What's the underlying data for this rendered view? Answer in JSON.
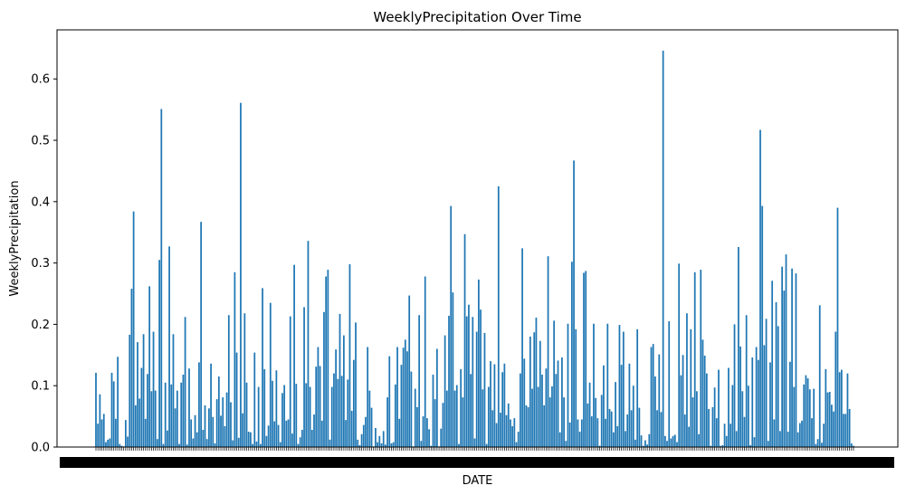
{
  "chart_data": {
    "type": "bar",
    "title": "WeeklyPrecipitation Over Time",
    "xlabel": "DATE",
    "ylabel": "WeeklyPrecipitation",
    "ylim": [
      0,
      0.68
    ],
    "yticks": [
      "0.0",
      "0.1",
      "0.2",
      "0.3",
      "0.4",
      "0.5",
      "0.6"
    ],
    "ytick_values": [
      0.0,
      0.1,
      0.2,
      0.3,
      0.4,
      0.5,
      0.6
    ],
    "xtick_edge_labels": {
      "left": "2",
      "right": "25"
    },
    "legend": "none",
    "grid": false,
    "bar_color": "#1f77b4",
    "values": [
      0.121,
      0.038,
      0.086,
      0.045,
      0.054,
      0.008,
      0.012,
      0.014,
      0.121,
      0.107,
      0.046,
      0.147,
      0.005,
      0.002,
      0.001,
      0.044,
      0.017,
      0.183,
      0.258,
      0.384,
      0.068,
      0.171,
      0.079,
      0.129,
      0.184,
      0.046,
      0.119,
      0.262,
      0.091,
      0.188,
      0.092,
      0.013,
      0.305,
      0.551,
      0.005,
      0.105,
      0.027,
      0.327,
      0.102,
      0.184,
      0.063,
      0.092,
      0.005,
      0.105,
      0.118,
      0.212,
      0.004,
      0.128,
      0.045,
      0.014,
      0.052,
      0.024,
      0.138,
      0.367,
      0.028,
      0.068,
      0.013,
      0.063,
      0.136,
      0.049,
      0.006,
      0.078,
      0.115,
      0.051,
      0.081,
      0.034,
      0.089,
      0.215,
      0.073,
      0.011,
      0.285,
      0.154,
      0.015,
      0.561,
      0.055,
      0.218,
      0.105,
      0.025,
      0.024,
      0.005,
      0.154,
      0.009,
      0.098,
      0.005,
      0.259,
      0.127,
      0.018,
      0.035,
      0.235,
      0.108,
      0.042,
      0.125,
      0.036,
      0.008,
      0.088,
      0.101,
      0.043,
      0.045,
      0.213,
      0.022,
      0.297,
      0.103,
      0.005,
      0.016,
      0.028,
      0.228,
      0.104,
      0.336,
      0.098,
      0.028,
      0.053,
      0.131,
      0.163,
      0.132,
      0.043,
      0.22,
      0.278,
      0.289,
      0.012,
      0.098,
      0.12,
      0.159,
      0.111,
      0.217,
      0.116,
      0.182,
      0.044,
      0.11,
      0.298,
      0.059,
      0.142,
      0.203,
      0.012,
      0.003,
      0.021,
      0.036,
      0.049,
      0.163,
      0.092,
      0.064,
      0.001,
      0.031,
      0.008,
      0.018,
      0.006,
      0.026,
      0.004,
      0.081,
      0.148,
      0.006,
      0.008,
      0.102,
      0.163,
      0.046,
      0.134,
      0.162,
      0.175,
      0.156,
      0.247,
      0.123,
      0.001,
      0.095,
      0.065,
      0.215,
      0.01,
      0.05,
      0.278,
      0.047,
      0.029,
      0.002,
      0.118,
      0.078,
      0.16,
      0.001,
      0.03,
      0.072,
      0.182,
      0.092,
      0.214,
      0.393,
      0.252,
      0.092,
      0.101,
      0.005,
      0.127,
      0.081,
      0.347,
      0.213,
      0.232,
      0.119,
      0.212,
      0.014,
      0.188,
      0.273,
      0.224,
      0.094,
      0.186,
      0.005,
      0.098,
      0.14,
      0.06,
      0.135,
      0.039,
      0.425,
      0.056,
      0.122,
      0.136,
      0.052,
      0.071,
      0.045,
      0.034,
      0.047,
      0.008,
      0.025,
      0.12,
      0.324,
      0.144,
      0.068,
      0.065,
      0.18,
      0.095,
      0.187,
      0.211,
      0.098,
      0.173,
      0.118,
      0.068,
      0.128,
      0.311,
      0.081,
      0.099,
      0.206,
      0.119,
      0.141,
      0.024,
      0.146,
      0.081,
      0.01,
      0.201,
      0.04,
      0.302,
      0.467,
      0.192,
      0.045,
      0.025,
      0.045,
      0.284,
      0.287,
      0.071,
      0.105,
      0.05,
      0.201,
      0.08,
      0.047,
      0.002,
      0.085,
      0.133,
      0.046,
      0.201,
      0.062,
      0.058,
      0.024,
      0.106,
      0.034,
      0.199,
      0.134,
      0.188,
      0.026,
      0.053,
      0.136,
      0.06,
      0.1,
      0.012,
      0.192,
      0.064,
      0.019,
      0.002,
      0.011,
      0.004,
      0.021,
      0.163,
      0.168,
      0.115,
      0.06,
      0.151,
      0.057,
      0.646,
      0.018,
      0.01,
      0.205,
      0.014,
      0.018,
      0.02,
      0.008,
      0.299,
      0.117,
      0.15,
      0.053,
      0.218,
      0.033,
      0.192,
      0.081,
      0.285,
      0.091,
      0.021,
      0.289,
      0.175,
      0.149,
      0.12,
      0.062,
      0.002,
      0.065,
      0.097,
      0.047,
      0.126,
      0.002,
      0.003,
      0.038,
      0.018,
      0.129,
      0.038,
      0.101,
      0.2,
      0.026,
      0.326,
      0.164,
      0.091,
      0.049,
      0.215,
      0.1,
      0.003,
      0.146,
      0.016,
      0.163,
      0.142,
      0.517,
      0.393,
      0.166,
      0.209,
      0.01,
      0.138,
      0.271,
      0.045,
      0.236,
      0.197,
      0.026,
      0.294,
      0.255,
      0.314,
      0.025,
      0.139,
      0.291,
      0.098,
      0.283,
      0.024,
      0.039,
      0.043,
      0.102,
      0.117,
      0.112,
      0.094,
      0.047,
      0.095,
      0.005,
      0.013,
      0.231,
      0.007,
      0.038,
      0.127,
      0.089,
      0.09,
      0.069,
      0.058,
      0.188,
      0.39,
      0.122,
      0.126,
      0.054,
      0.054,
      0.12,
      0.062,
      0.006,
      0.002
    ]
  }
}
